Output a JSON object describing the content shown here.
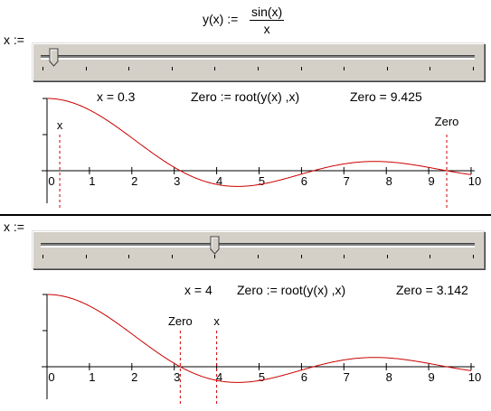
{
  "definition": {
    "lhs": "y(x) :=",
    "numerator": "sin(x)",
    "denominator": "x"
  },
  "colors": {
    "curve": "#cc0000",
    "marker": "#cc0000",
    "slider_face": "#d4d0c8"
  },
  "panels": [
    {
      "slider_label": "x :=",
      "slider_fraction": 0.03,
      "x_readout": "x = 0.3",
      "root_expr": "Zero := root(y(x) ,x)",
      "zero_readout": "Zero = 9.425",
      "x_value": 0.3,
      "zero_value": 9.425,
      "x_marker_label": "x",
      "zero_marker_label": "Zero"
    },
    {
      "slider_label": "x :=",
      "slider_fraction": 0.4,
      "x_readout": "x = 4",
      "root_expr": "Zero := root(y(x) ,x)",
      "zero_readout": "Zero = 3.142",
      "x_value": 4,
      "zero_value": 3.142,
      "x_marker_label": "x",
      "zero_marker_label": "Zero"
    }
  ],
  "chart_data": [
    {
      "type": "line",
      "function": "sin(x)/x",
      "xlim": [
        0,
        10
      ],
      "ylim": [
        -0.3,
        1
      ],
      "x_ticks": [
        "0",
        "1",
        "2",
        "3",
        "4",
        "5",
        "6",
        "7",
        "8",
        "9",
        "10"
      ],
      "series": [
        {
          "function": "sin(x)/x",
          "x_start": 0,
          "x_end": 10
        }
      ],
      "markers": [
        {
          "label": "x",
          "x": 0.3
        },
        {
          "label": "Zero",
          "x": 9.425
        }
      ]
    },
    {
      "type": "line",
      "function": "sin(x)/x",
      "xlim": [
        0,
        10
      ],
      "ylim": [
        -0.3,
        1
      ],
      "x_ticks": [
        "0",
        "1",
        "2",
        "3",
        "4",
        "5",
        "6",
        "7",
        "8",
        "9",
        "10"
      ],
      "series": [
        {
          "function": "sin(x)/x",
          "x_start": 0,
          "x_end": 10
        }
      ],
      "markers": [
        {
          "label": "Zero",
          "x": 3.142
        },
        {
          "label": "x",
          "x": 4
        }
      ]
    }
  ]
}
